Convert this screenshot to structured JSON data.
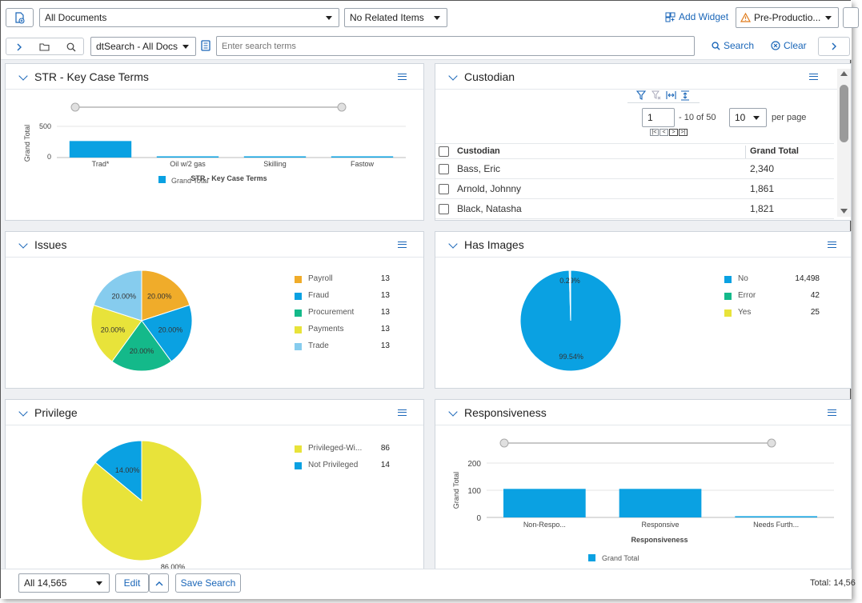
{
  "toolbar": {
    "document_list": "All Documents",
    "related_items": "No Related Items",
    "add_widget": "Add Widget",
    "environment": "Pre-Productio..."
  },
  "search_bar": {
    "index": "dtSearch - All Docs",
    "placeholder": "Enter search terms",
    "search_label": "Search",
    "clear_label": "Clear"
  },
  "widgets": {
    "str": {
      "title": "STR - Key Case Terms",
      "chart_data": {
        "type": "bar",
        "categories": [
          "Trad*",
          "Oil w/2 gas",
          "Skilling",
          "Fastow"
        ],
        "series": [
          {
            "name": "Grand Total",
            "values": [
              265,
              10,
              8,
              6
            ]
          }
        ],
        "xlabel": "STR - Key Case Terms",
        "ylabel": "Grand Total",
        "yticks": [
          "500",
          "0"
        ],
        "ylim": [
          0,
          500
        ],
        "grid": true,
        "legend_position": "bottom",
        "color": "#0aa1e2"
      }
    },
    "custodian": {
      "title": "Custodian",
      "page_value": "1",
      "range_text": "- 10 of 50",
      "per_page_value": "10",
      "per_page_label": "per page",
      "columns": [
        "Custodian",
        "Grand Total"
      ],
      "rows": [
        {
          "name": "Bass, Eric",
          "total": "2,340"
        },
        {
          "name": "Arnold, Johnny",
          "total": "1,861"
        },
        {
          "name": "Black, Natasha",
          "total": "1,821"
        }
      ]
    },
    "issues": {
      "title": "Issues",
      "chart_data": {
        "type": "pie",
        "labels": [
          "Payroll",
          "Fraud",
          "Procurement",
          "Payments",
          "Trade"
        ],
        "values": [
          13,
          13,
          13,
          13,
          13
        ],
        "slice_labels": [
          "20.00%",
          "20.00%",
          "20.00%",
          "20.00%",
          "20.00%"
        ],
        "colors": [
          "#f0ac2a",
          "#0aa1e2",
          "#14b98a",
          "#e8e33a",
          "#86ccee"
        ],
        "legend_position": "right"
      }
    },
    "images": {
      "title": "Has Images",
      "chart_data": {
        "type": "pie",
        "labels": [
          "No",
          "Error",
          "Yes"
        ],
        "values": [
          14498,
          42,
          25
        ],
        "value_labels": [
          "14,498",
          "42",
          "25"
        ],
        "slice_labels": [
          "99.54%",
          "0.29%",
          ""
        ],
        "colors": [
          "#0aa1e2",
          "#14b98a",
          "#e8e33a"
        ],
        "legend_position": "right"
      }
    },
    "privilege": {
      "title": "Privilege",
      "chart_data": {
        "type": "pie",
        "labels": [
          "Privileged-Wi...",
          "Not Privileged"
        ],
        "values": [
          86,
          14
        ],
        "slice_labels": [
          "86.00%",
          "14.00%"
        ],
        "colors": [
          "#e8e33a",
          "#0aa1e2"
        ],
        "legend_position": "right"
      }
    },
    "responsiveness": {
      "title": "Responsiveness",
      "chart_data": {
        "type": "bar",
        "categories": [
          "Non-Respo...",
          "Responsive",
          "Needs Furth..."
        ],
        "series": [
          {
            "name": "Grand Total",
            "values": [
              105,
              105,
              2
            ]
          }
        ],
        "xlabel": "Responsiveness",
        "ylabel": "Grand Total",
        "yticks": [
          "200",
          "100",
          "0"
        ],
        "ylim": [
          0,
          200
        ],
        "grid": true,
        "legend_position": "bottom",
        "color": "#0aa1e2"
      }
    }
  },
  "footer": {
    "set_select": "All 14,565",
    "edit_label": "Edit",
    "save_search_label": "Save Search",
    "total_text": "Total: 14,56"
  }
}
